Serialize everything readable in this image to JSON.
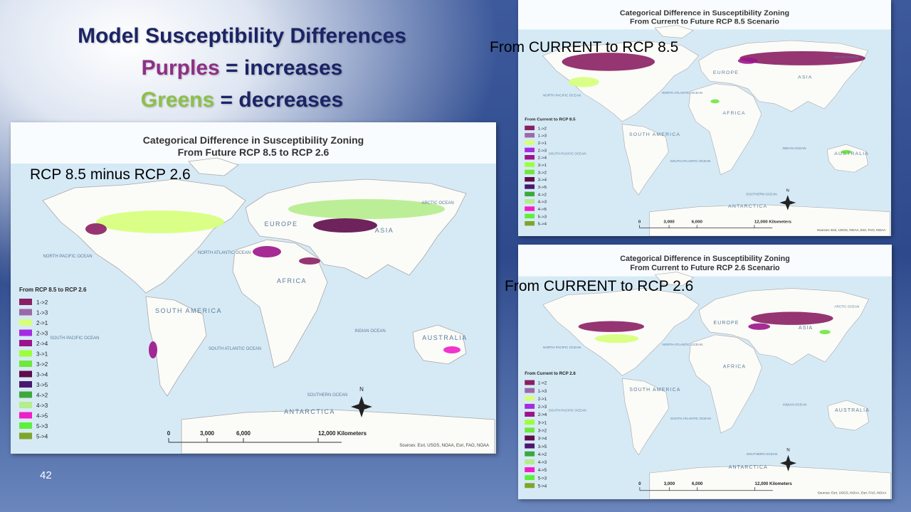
{
  "slide": {
    "title": "Model Susceptibility Differences",
    "subtitle_lines": [
      {
        "highlight": "Purples",
        "text": "= increases",
        "highlight_color": "#8e2f86"
      },
      {
        "highlight": "Greens",
        "text": "= decreases",
        "highlight_color": "#8cc04a"
      }
    ],
    "page_number": "42"
  },
  "map_common": {
    "title_line1": "Categorical Difference in Susceptibility Zoning",
    "legend_items": [
      {
        "label": "1->2",
        "color": "#8a1f63"
      },
      {
        "label": "1->3",
        "color": "#9a6aa6"
      },
      {
        "label": "2->1",
        "color": "#d6ff7a"
      },
      {
        "label": "2->3",
        "color": "#a52ae0"
      },
      {
        "label": "2->4",
        "color": "#9c1489"
      },
      {
        "label": "3->1",
        "color": "#9cff3a"
      },
      {
        "label": "3->2",
        "color": "#6ee83c"
      },
      {
        "label": "3->4",
        "color": "#5e0b4a"
      },
      {
        "label": "3->5",
        "color": "#4a1870"
      },
      {
        "label": "4->2",
        "color": "#3da83a"
      },
      {
        "label": "4->3",
        "color": "#b5ec8c"
      },
      {
        "label": "4->5",
        "color": "#f01ec8"
      },
      {
        "label": "5->3",
        "color": "#5cf03a"
      },
      {
        "label": "5->4",
        "color": "#7ea62a"
      }
    ],
    "place_labels": [
      "ARCTIC OCEAN",
      "NORTH PACIFIC OCEAN",
      "NORTH ATLANTIC OCEAN",
      "SOUTH PACIFIC OCEAN",
      "SOUTH ATLANTIC OCEAN",
      "INDIAN OCEAN",
      "SOUTHERN OCEAN",
      "ANTARCTICA",
      "SOUTH AMERICA",
      "AFRICA",
      "ASIA",
      "EUROPE",
      "AUSTRALIA"
    ],
    "scale_labels": [
      "0",
      "3,000",
      "6,000",
      "12,000 Kilometers"
    ],
    "north": "N",
    "source": "Sources: Esri, USGS, NOAA, Esri, FAO, NOAA"
  },
  "maps": [
    {
      "title_line2": "From Future RCP 8.5 to RCP 2.6",
      "overlay_label": "RCP 8.5 minus RCP 2.6",
      "legend_title": "From RCP 8.5 to RCP 2.6"
    },
    {
      "title_line2": "From Current to Future RCP 8.5 Scenario",
      "overlay_label": "From CURRENT to RCP 8.5",
      "legend_title": "From Current to RCP 8.5"
    },
    {
      "title_line2": "From Current to Future RCP 2.6 Scenario",
      "overlay_label": "From CURRENT to RCP 2.6",
      "legend_title": "From Current to RCP 2.6"
    }
  ]
}
